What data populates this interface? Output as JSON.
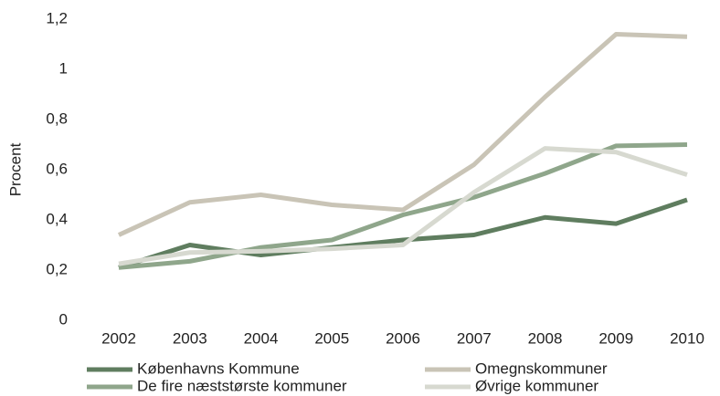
{
  "chart_data": {
    "type": "line",
    "y_label": "Procent",
    "categories": [
      "2002",
      "2003",
      "2004",
      "2005",
      "2006",
      "2007",
      "2008",
      "2009",
      "2010"
    ],
    "series": [
      {
        "name": "Københavns Kommune",
        "color": "#5f7d5f",
        "values": [
          0.21,
          0.3,
          0.26,
          0.29,
          0.32,
          0.34,
          0.41,
          0.385,
          0.48
        ]
      },
      {
        "name": "Omegnskommuner",
        "color": "#c9c4b6",
        "values": [
          0.34,
          0.47,
          0.5,
          0.46,
          0.44,
          0.62,
          0.89,
          1.14,
          1.13
        ]
      },
      {
        "name": "De fire næststørste kommuner",
        "color": "#8fa68b",
        "values": [
          0.21,
          0.235,
          0.29,
          0.32,
          0.42,
          0.49,
          0.585,
          0.695,
          0.7
        ]
      },
      {
        "name": "Øvrige kommuner",
        "color": "#d7d9d0",
        "values": [
          0.225,
          0.27,
          0.275,
          0.285,
          0.3,
          0.51,
          0.685,
          0.67,
          0.58
        ]
      }
    ],
    "ylim": [
      0,
      1.2
    ],
    "yticks": [
      0,
      {
        "value": 0.2,
        "label": "0,2"
      },
      {
        "value": 0.4,
        "label": "0,4"
      },
      {
        "value": 0.6,
        "label": "0,6"
      },
      {
        "value": 0.8,
        "label": "0,8"
      },
      1,
      {
        "value": 1.2,
        "label": "1,2"
      }
    ],
    "grid": false,
    "legend": "bottom"
  }
}
